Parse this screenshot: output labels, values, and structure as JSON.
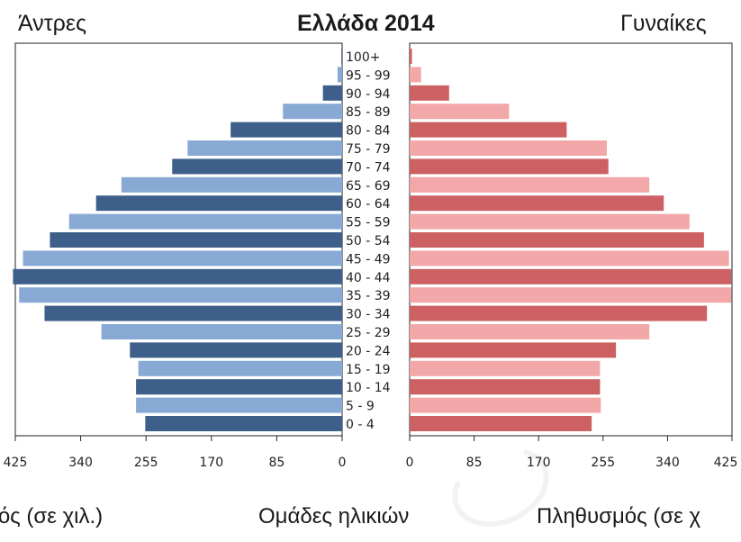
{
  "header": {
    "men_label": "Άντρες",
    "title": "Ελλάδα 2014",
    "women_label": "Γυναίκες"
  },
  "footer": {
    "left_axis_label": "μός (σε χιλ.)",
    "center_label": "Ομάδες ηλικιών",
    "right_axis_label": "Πληθυσμός (σε χ"
  },
  "chart_data": {
    "type": "bar",
    "orientation": "horizontal-pyramid",
    "categories": [
      "0 - 4",
      "5 - 9",
      "10 - 14",
      "15 - 19",
      "20 - 24",
      "25 - 29",
      "30 - 34",
      "35 - 39",
      "40 - 44",
      "45 - 49",
      "50 - 54",
      "55 - 59",
      "60 - 64",
      "65 - 69",
      "70 - 74",
      "75 - 79",
      "80 - 84",
      "85 - 89",
      "90 - 94",
      "95 - 99",
      "100+"
    ],
    "series": [
      {
        "name": "Άντρες",
        "values": [
          256,
          268,
          268,
          265,
          276,
          313,
          387,
          420,
          428,
          415,
          380,
          355,
          320,
          287,
          221,
          201,
          145,
          77,
          25,
          6,
          1
        ]
      },
      {
        "name": "Γυναίκες",
        "values": [
          240,
          252,
          251,
          251,
          272,
          316,
          392,
          424,
          424,
          421,
          388,
          369,
          335,
          316,
          262,
          260,
          207,
          131,
          52,
          15,
          3
        ]
      }
    ],
    "xticks": [
      425,
      340,
      255,
      170,
      85,
      0
    ],
    "xlim": [
      0,
      425
    ],
    "colors": {
      "men_dark": "#3e5f8a",
      "men_light": "#88a9d4",
      "women_dark": "#cc6062",
      "women_light": "#f2a7a8"
    }
  }
}
